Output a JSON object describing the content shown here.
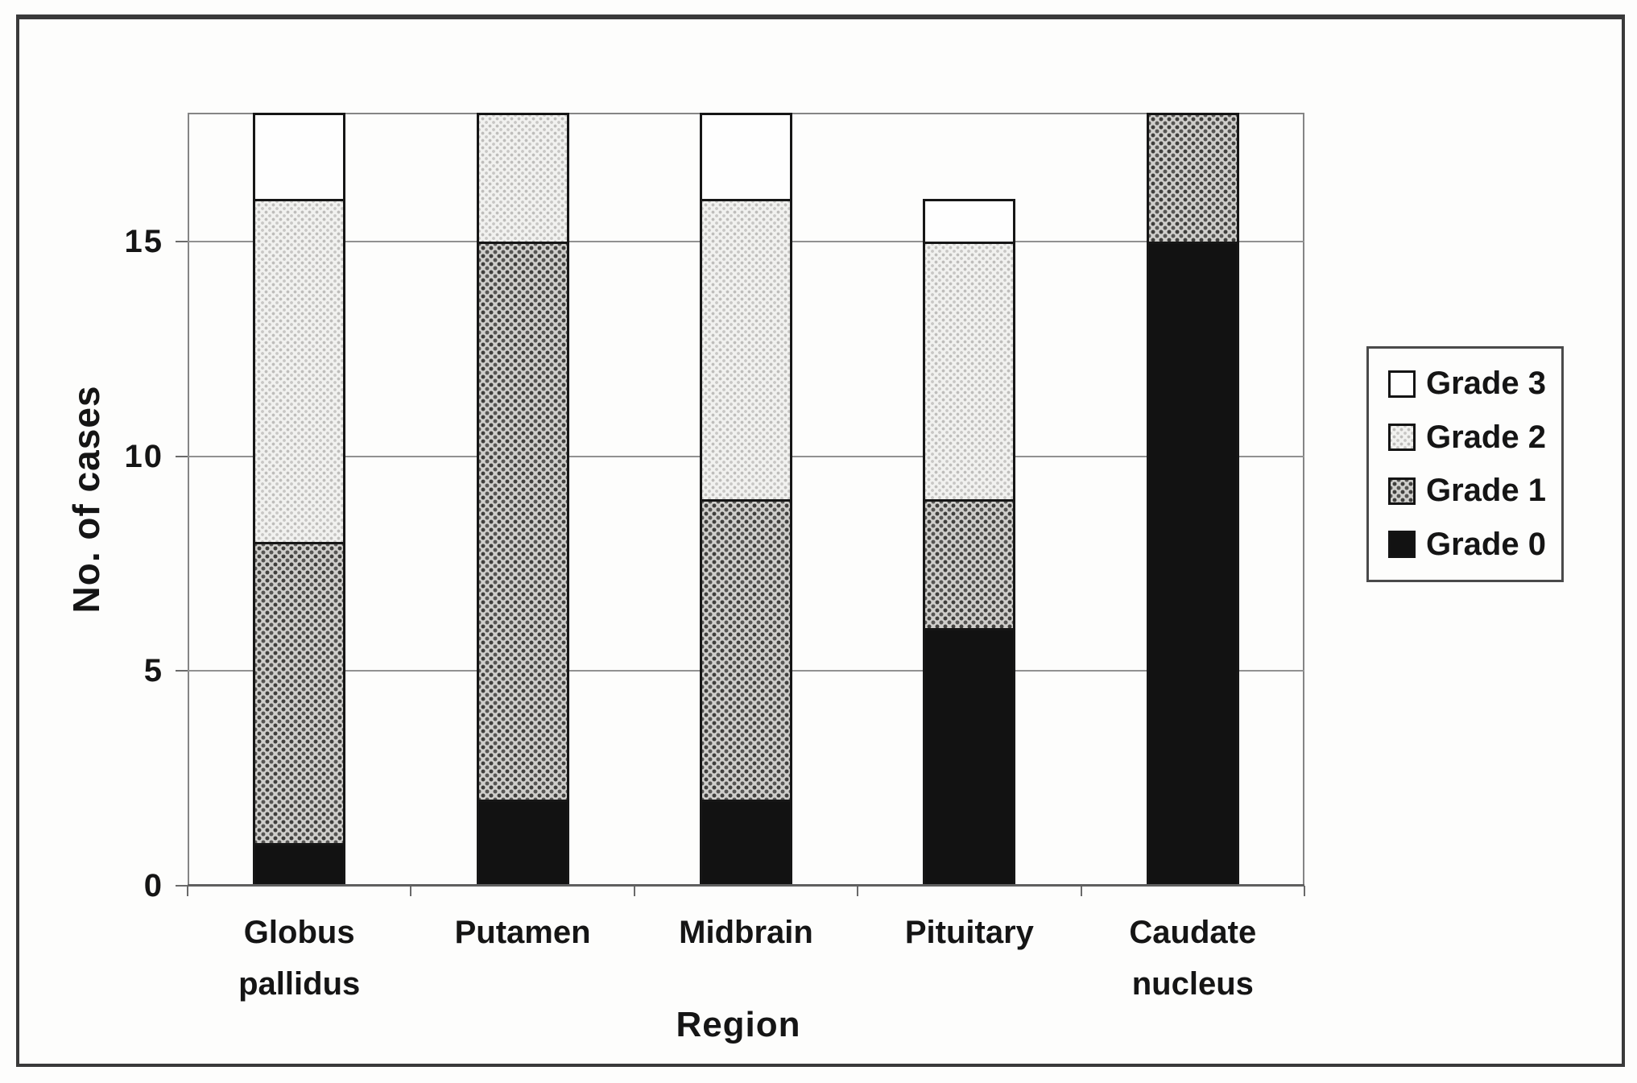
{
  "chart_data": {
    "type": "bar",
    "stacked": true,
    "title": "",
    "xlabel": "Region",
    "ylabel": "No. of cases",
    "categories": [
      "Globus pallidus",
      "Putamen",
      "Midbrain",
      "Pituitary",
      "Caudate nucleus"
    ],
    "series": [
      {
        "name": "Grade 0",
        "values": [
          1,
          2,
          2,
          6,
          15
        ],
        "fill": "#121212",
        "pattern": "solid-black"
      },
      {
        "name": "Grade 1",
        "values": [
          7,
          13,
          7,
          3,
          3
        ],
        "fill": "#b3b2b0",
        "pattern": "dark-halftone-dots"
      },
      {
        "name": "Grade 2",
        "values": [
          8,
          3,
          7,
          6,
          0
        ],
        "fill": "#e8e8e6",
        "pattern": "light-halftone-dots"
      },
      {
        "name": "Grade 3",
        "values": [
          2,
          0,
          2,
          1,
          0
        ],
        "fill": "#fefefe",
        "pattern": "solid-white"
      }
    ],
    "totals": [
      18,
      18,
      18,
      16,
      18
    ],
    "ylim": [
      0,
      18
    ],
    "yticks": [
      0,
      5,
      10,
      15
    ],
    "grid": "horizontal",
    "legend": {
      "position": "right",
      "entries": [
        "Grade 3",
        "Grade 2",
        "Grade 1",
        "Grade 0"
      ]
    }
  }
}
